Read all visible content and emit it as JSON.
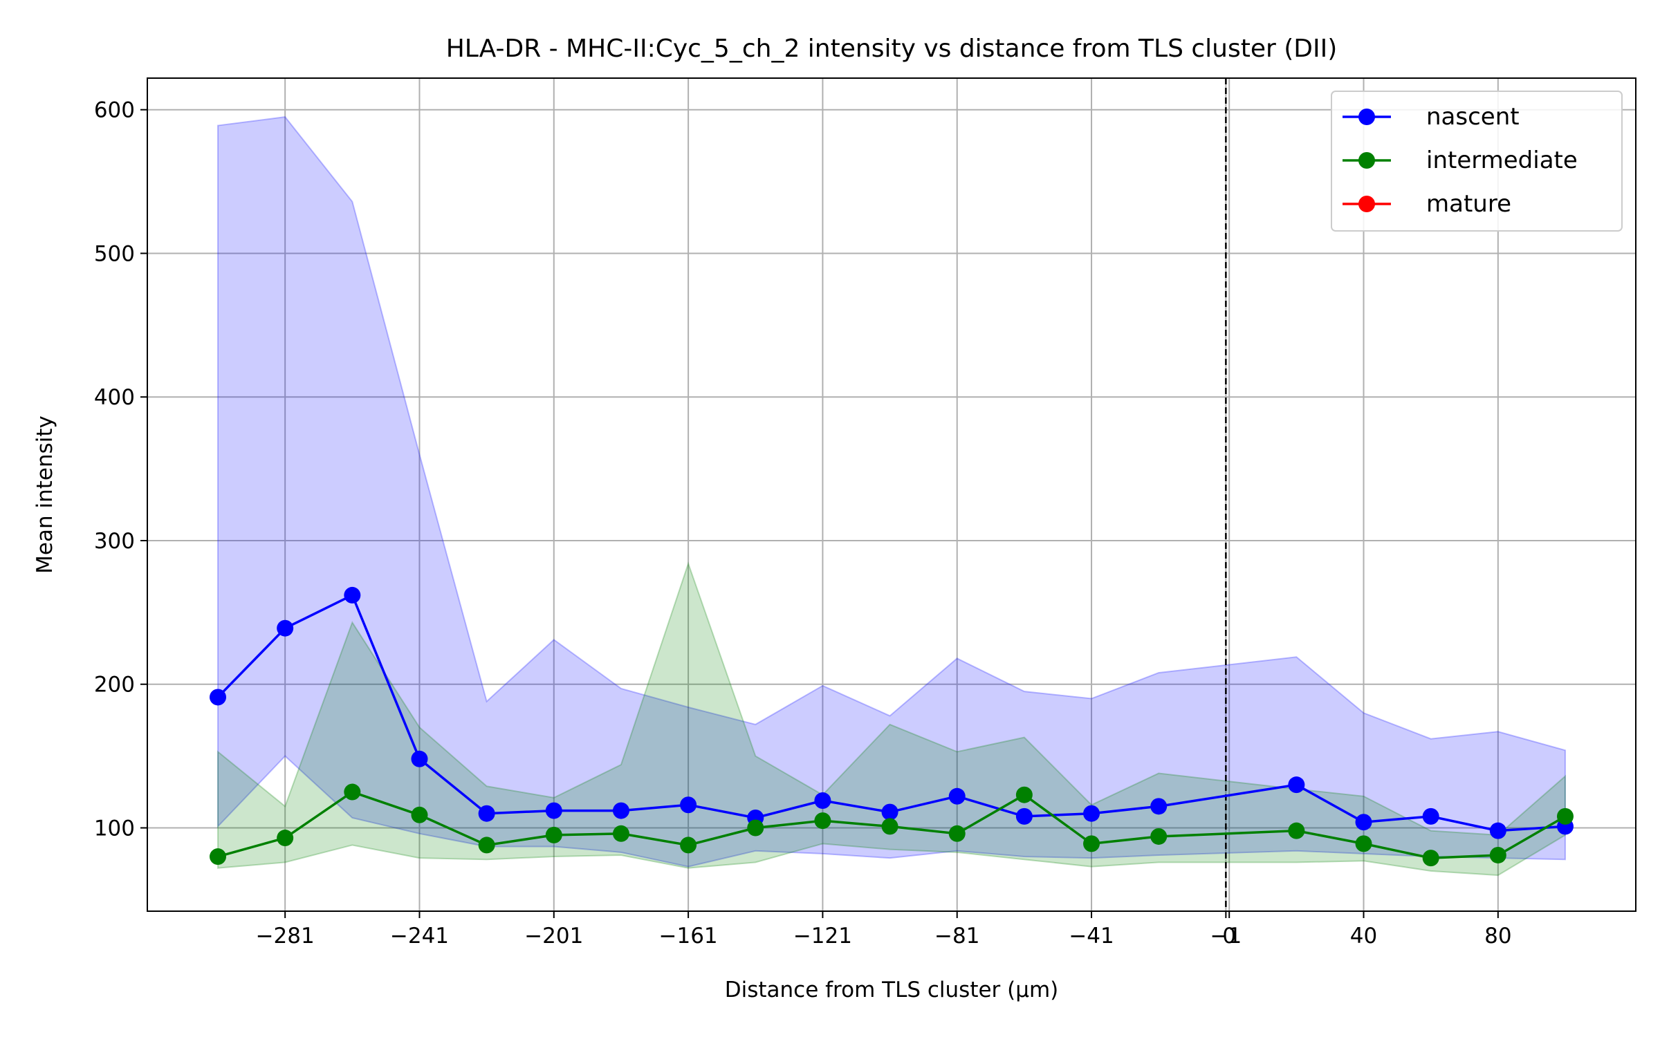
{
  "chart_data": {
    "type": "line",
    "title": "HLA-DR - MHC-II:Cyc_5_ch_2 intensity vs distance from TLS cluster (DII)",
    "xlabel": "Distance from TLS cluster (μm)",
    "ylabel": "Mean intensity",
    "xlim": [
      -322,
      121
    ],
    "ylim": [
      42,
      622
    ],
    "xticks": [
      -281,
      -241,
      -201,
      -161,
      -121,
      -81,
      -41,
      -1,
      0,
      40,
      80
    ],
    "xtick_labels": [
      "−281",
      "−241",
      "−201",
      "−161",
      "−121",
      "−81",
      "−41",
      "−1",
      "0",
      "40",
      "80"
    ],
    "yticks": [
      100,
      200,
      300,
      400,
      500,
      600
    ],
    "ytick_labels": [
      "100",
      "200",
      "300",
      "400",
      "500",
      "600"
    ],
    "grid": true,
    "legend_position": "top-right",
    "reference_line": {
      "x": -1,
      "style": "dashed"
    },
    "series": [
      {
        "name": "nascent",
        "color": "#0000ff",
        "x": [
          -301,
          -281,
          -261,
          -241,
          -221,
          -201,
          -181,
          -161,
          -141,
          -121,
          -101,
          -81,
          -61,
          -41,
          -21,
          20,
          40,
          60,
          80,
          100
        ],
        "y": [
          191,
          239,
          262,
          148,
          110,
          112,
          112,
          116,
          107,
          119,
          111,
          122,
          108,
          110,
          115,
          130,
          104,
          108,
          98,
          101
        ],
        "upper": [
          589,
          595,
          536,
          360,
          188,
          231,
          197,
          184,
          172,
          199,
          178,
          218,
          195,
          190,
          208,
          219,
          180,
          162,
          167,
          154
        ],
        "lower": [
          101,
          150,
          107,
          96,
          87,
          87,
          83,
          73,
          84,
          82,
          79,
          84,
          80,
          79,
          81,
          84,
          82,
          80,
          79,
          78
        ]
      },
      {
        "name": "intermediate",
        "color": "#008000",
        "x": [
          -301,
          -281,
          -261,
          -241,
          -221,
          -201,
          -181,
          -161,
          -141,
          -121,
          -101,
          -81,
          -61,
          -41,
          -21,
          20,
          40,
          60,
          80,
          100
        ],
        "y": [
          80,
          93,
          125,
          109,
          88,
          95,
          96,
          88,
          100,
          105,
          101,
          96,
          123,
          89,
          94,
          98,
          89,
          79,
          81,
          108
        ],
        "upper": [
          153,
          115,
          243,
          170,
          129,
          121,
          144,
          284,
          150,
          123,
          172,
          153,
          163,
          116,
          138,
          127,
          122,
          98,
          95,
          136
        ],
        "lower": [
          72,
          76,
          88,
          79,
          78,
          80,
          81,
          72,
          76,
          89,
          85,
          83,
          78,
          73,
          76,
          76,
          77,
          70,
          67,
          95
        ]
      },
      {
        "name": "mature",
        "color": "#ff0000",
        "x": [],
        "y": [],
        "upper": [],
        "lower": []
      }
    ]
  }
}
